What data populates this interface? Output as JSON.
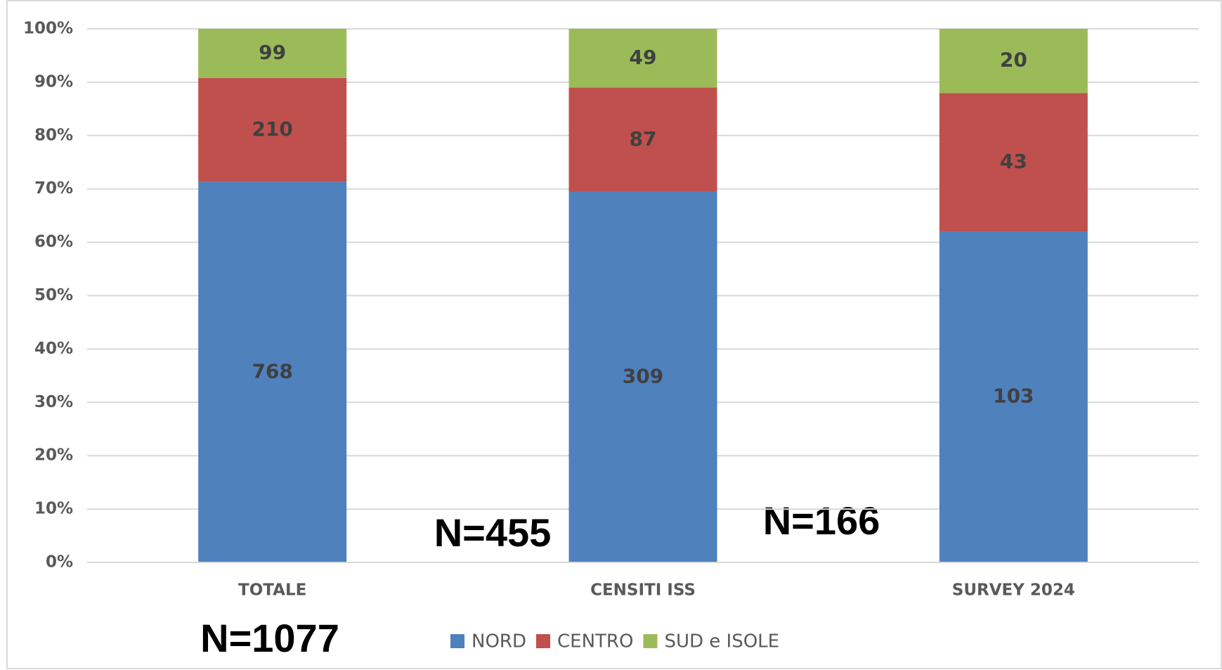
{
  "chart_data": {
    "type": "bar",
    "stacking": "percent",
    "categories": [
      "TOTALE",
      "CENSITI ISS",
      "SURVEY 2024"
    ],
    "series": [
      {
        "name": "NORD",
        "color": "#4f81bd",
        "values": [
          768,
          309,
          103
        ]
      },
      {
        "name": "CENTRO",
        "color": "#c0504d",
        "values": [
          210,
          87,
          43
        ]
      },
      {
        "name": "SUD e ISOLE",
        "color": "#9bbb59",
        "values": [
          99,
          49,
          20
        ]
      }
    ],
    "ylim": [
      0,
      100
    ],
    "yticks": [
      {
        "value": 0,
        "label": "0%"
      },
      {
        "value": 10,
        "label": "10%"
      },
      {
        "value": 20,
        "label": "20%"
      },
      {
        "value": 30,
        "label": "30%"
      },
      {
        "value": 40,
        "label": "40%"
      },
      {
        "value": 50,
        "label": "50%"
      },
      {
        "value": 60,
        "label": "60%"
      },
      {
        "value": 70,
        "label": "70%"
      },
      {
        "value": 80,
        "label": "80%"
      },
      {
        "value": 90,
        "label": "90%"
      },
      {
        "value": 100,
        "label": "100%"
      }
    ],
    "grid": true,
    "legend": "bottom",
    "annotations": [
      "N=1077",
      "N=455",
      "N=166"
    ]
  }
}
